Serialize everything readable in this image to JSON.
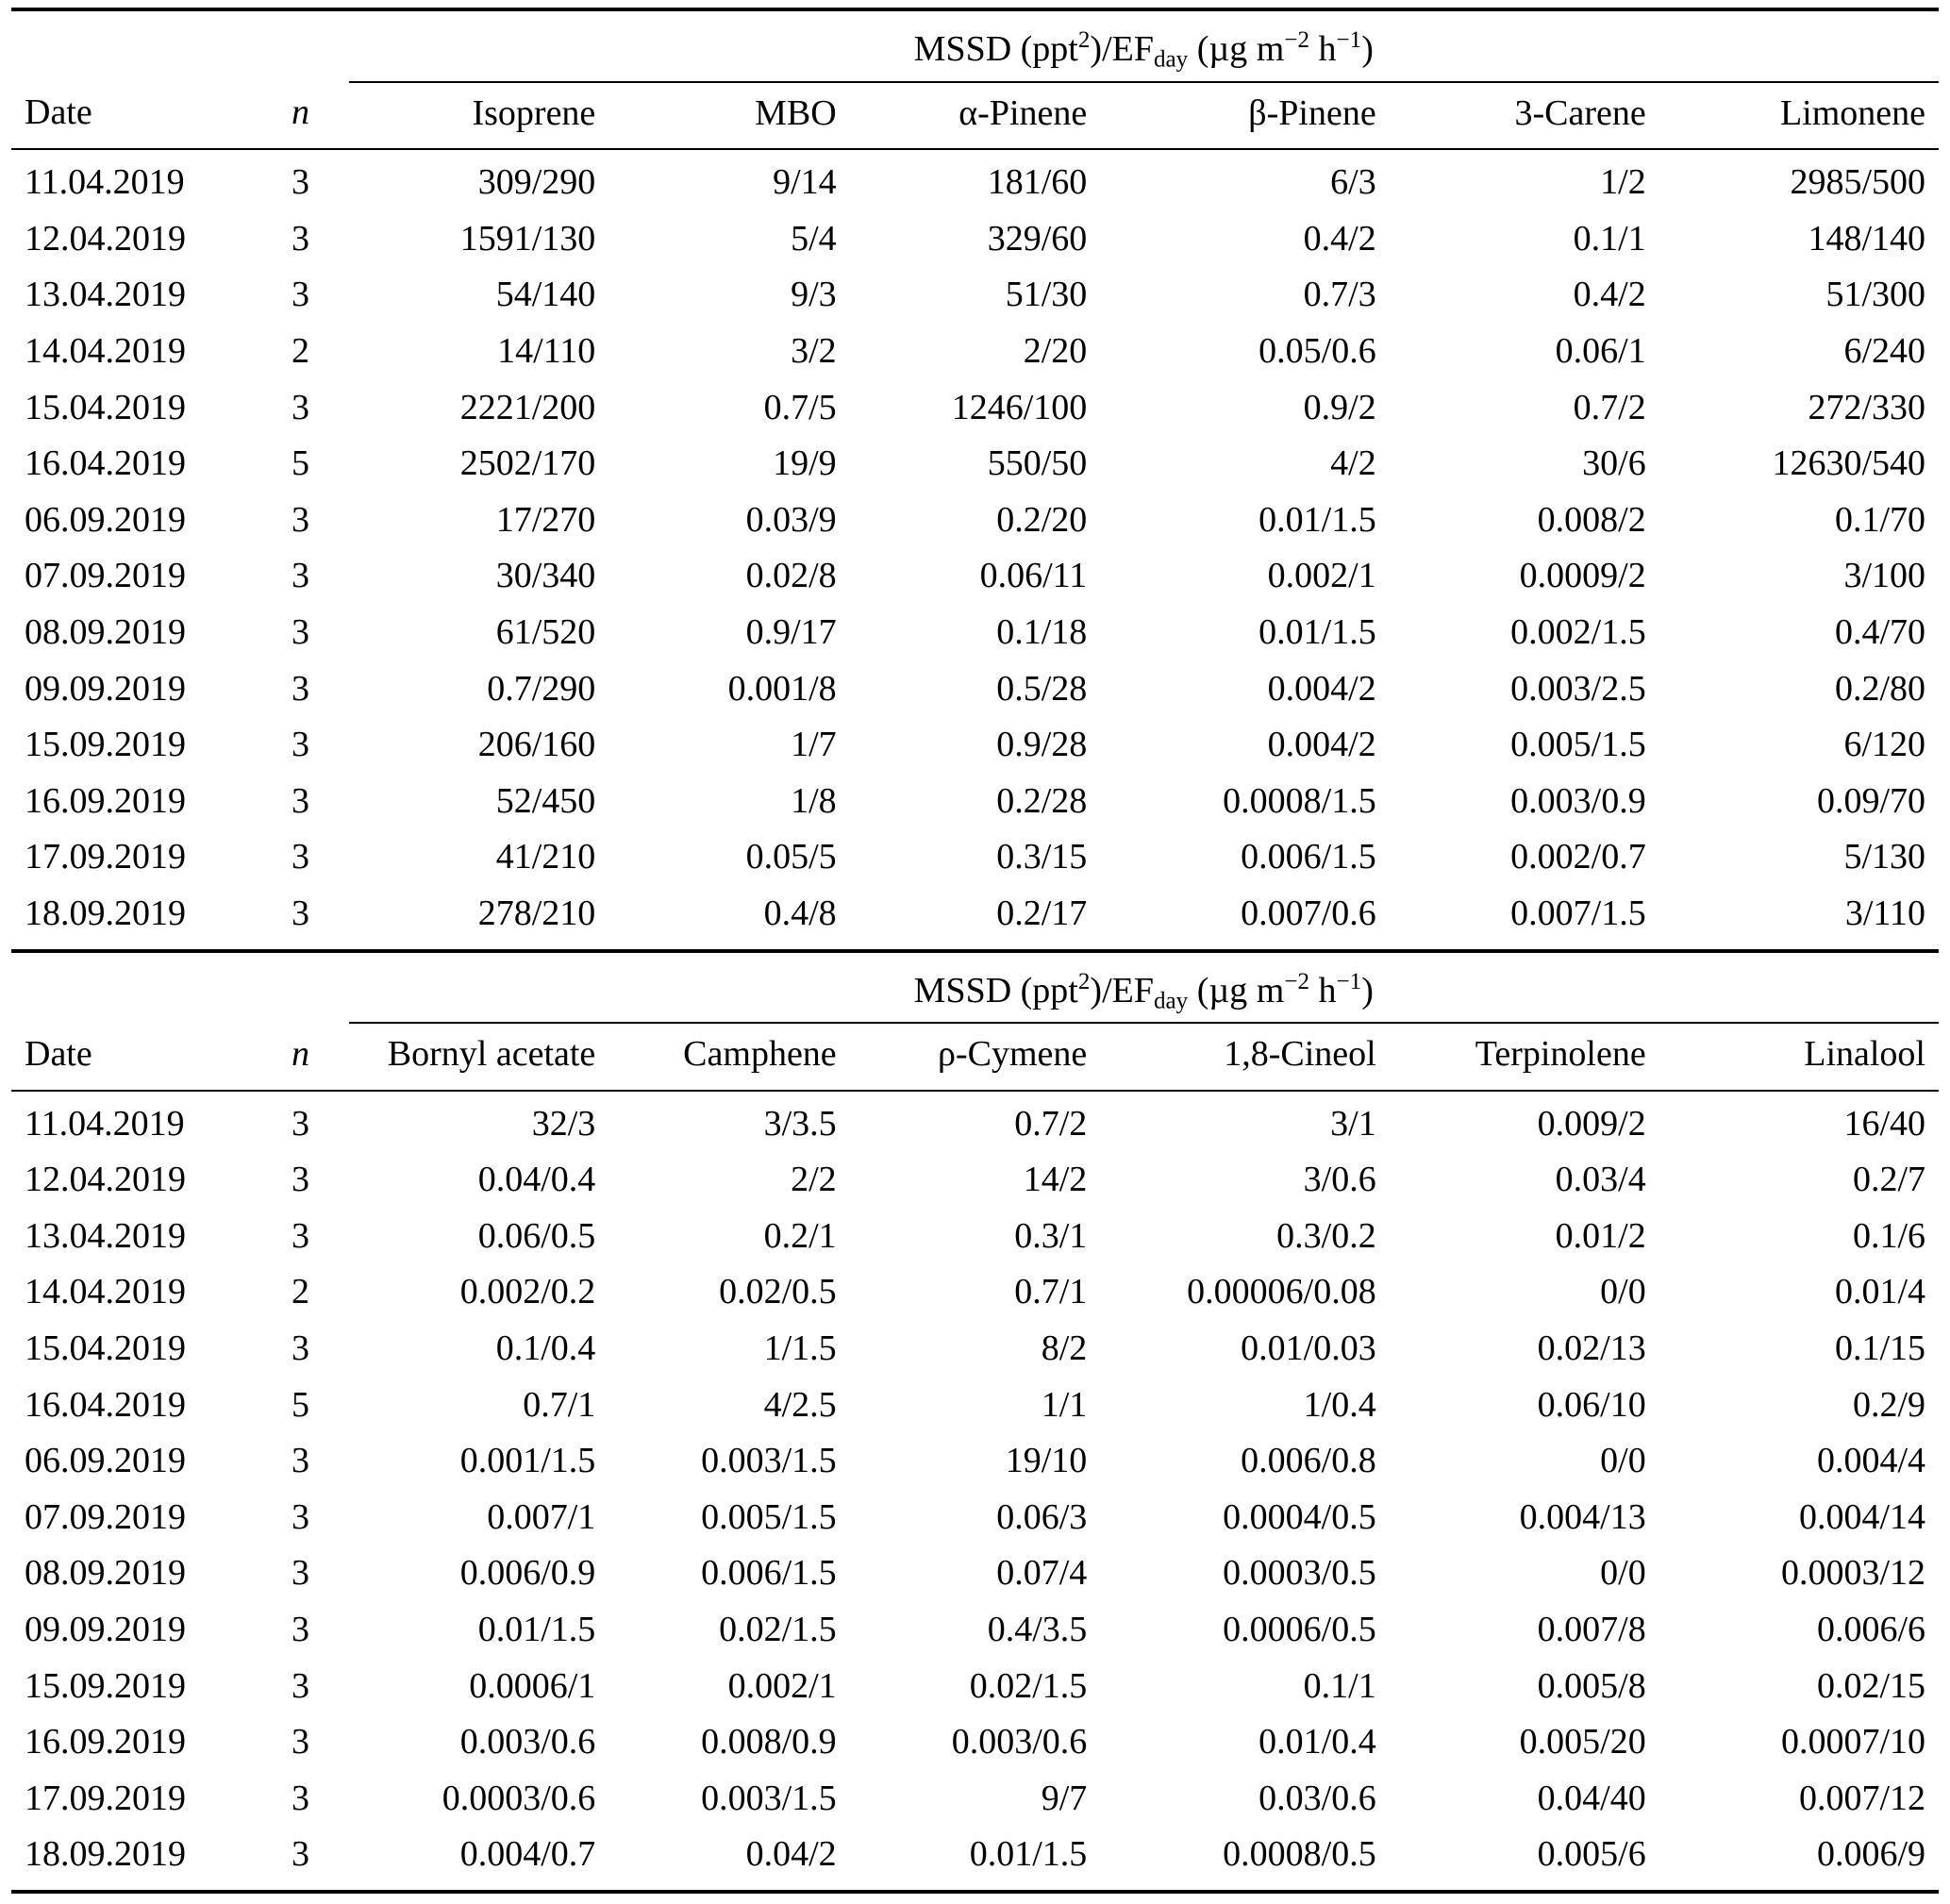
{
  "unit_header": {
    "p1": "MSSD (ppt",
    "sup1": "2",
    "p2": ")/EF",
    "sub1": "day",
    "p3": " (µg m",
    "sup2": "−2",
    "p4": " h",
    "sup3": "−1",
    "p5": ")"
  },
  "tables": [
    {
      "columns": [
        "Date",
        "n",
        "Isoprene",
        "MBO",
        "α-Pinene",
        "β-Pinene",
        "3-Carene",
        "Limonene"
      ],
      "rows": [
        [
          "11.04.2019",
          "3",
          "309/290",
          "9/14",
          "181/60",
          "6/3",
          "1/2",
          "2985/500"
        ],
        [
          "12.04.2019",
          "3",
          "1591/130",
          "5/4",
          "329/60",
          "0.4/2",
          "0.1/1",
          "148/140"
        ],
        [
          "13.04.2019",
          "3",
          "54/140",
          "9/3",
          "51/30",
          "0.7/3",
          "0.4/2",
          "51/300"
        ],
        [
          "14.04.2019",
          "2",
          "14/110",
          "3/2",
          "2/20",
          "0.05/0.6",
          "0.06/1",
          "6/240"
        ],
        [
          "15.04.2019",
          "3",
          "2221/200",
          "0.7/5",
          "1246/100",
          "0.9/2",
          "0.7/2",
          "272/330"
        ],
        [
          "16.04.2019",
          "5",
          "2502/170",
          "19/9",
          "550/50",
          "4/2",
          "30/6",
          "12630/540"
        ],
        [
          "06.09.2019",
          "3",
          "17/270",
          "0.03/9",
          "0.2/20",
          "0.01/1.5",
          "0.008/2",
          "0.1/70"
        ],
        [
          "07.09.2019",
          "3",
          "30/340",
          "0.02/8",
          "0.06/11",
          "0.002/1",
          "0.0009/2",
          "3/100"
        ],
        [
          "08.09.2019",
          "3",
          "61/520",
          "0.9/17",
          "0.1/18",
          "0.01/1.5",
          "0.002/1.5",
          "0.4/70"
        ],
        [
          "09.09.2019",
          "3",
          "0.7/290",
          "0.001/8",
          "0.5/28",
          "0.004/2",
          "0.003/2.5",
          "0.2/80"
        ],
        [
          "15.09.2019",
          "3",
          "206/160",
          "1/7",
          "0.9/28",
          "0.004/2",
          "0.005/1.5",
          "6/120"
        ],
        [
          "16.09.2019",
          "3",
          "52/450",
          "1/8",
          "0.2/28",
          "0.0008/1.5",
          "0.003/0.9",
          "0.09/70"
        ],
        [
          "17.09.2019",
          "3",
          "41/210",
          "0.05/5",
          "0.3/15",
          "0.006/1.5",
          "0.002/0.7",
          "5/130"
        ],
        [
          "18.09.2019",
          "3",
          "278/210",
          "0.4/8",
          "0.2/17",
          "0.007/0.6",
          "0.007/1.5",
          "3/110"
        ]
      ]
    },
    {
      "columns": [
        "Date",
        "n",
        "Bornyl acetate",
        "Camphene",
        "ρ-Cymene",
        "1,8-Cineol",
        "Terpinolene",
        "Linalool"
      ],
      "rows": [
        [
          "11.04.2019",
          "3",
          "32/3",
          "3/3.5",
          "0.7/2",
          "3/1",
          "0.009/2",
          "16/40"
        ],
        [
          "12.04.2019",
          "3",
          "0.04/0.4",
          "2/2",
          "14/2",
          "3/0.6",
          "0.03/4",
          "0.2/7"
        ],
        [
          "13.04.2019",
          "3",
          "0.06/0.5",
          "0.2/1",
          "0.3/1",
          "0.3/0.2",
          "0.01/2",
          "0.1/6"
        ],
        [
          "14.04.2019",
          "2",
          "0.002/0.2",
          "0.02/0.5",
          "0.7/1",
          "0.00006/0.08",
          "0/0",
          "0.01/4"
        ],
        [
          "15.04.2019",
          "3",
          "0.1/0.4",
          "1/1.5",
          "8/2",
          "0.01/0.03",
          "0.02/13",
          "0.1/15"
        ],
        [
          "16.04.2019",
          "5",
          "0.7/1",
          "4/2.5",
          "1/1",
          "1/0.4",
          "0.06/10",
          "0.2/9"
        ],
        [
          "06.09.2019",
          "3",
          "0.001/1.5",
          "0.003/1.5",
          "19/10",
          "0.006/0.8",
          "0/0",
          "0.004/4"
        ],
        [
          "07.09.2019",
          "3",
          "0.007/1",
          "0.005/1.5",
          "0.06/3",
          "0.0004/0.5",
          "0.004/13",
          "0.004/14"
        ],
        [
          "08.09.2019",
          "3",
          "0.006/0.9",
          "0.006/1.5",
          "0.07/4",
          "0.0003/0.5",
          "0/0",
          "0.0003/12"
        ],
        [
          "09.09.2019",
          "3",
          "0.01/1.5",
          "0.02/1.5",
          "0.4/3.5",
          "0.0006/0.5",
          "0.007/8",
          "0.006/6"
        ],
        [
          "15.09.2019",
          "3",
          "0.0006/1",
          "0.002/1",
          "0.02/1.5",
          "0.1/1",
          "0.005/8",
          "0.02/15"
        ],
        [
          "16.09.2019",
          "3",
          "0.003/0.6",
          "0.008/0.9",
          "0.003/0.6",
          "0.01/0.4",
          "0.005/20",
          "0.0007/10"
        ],
        [
          "17.09.2019",
          "3",
          "0.0003/0.6",
          "0.003/1.5",
          "9/7",
          "0.03/0.6",
          "0.04/40",
          "0.007/12"
        ],
        [
          "18.09.2019",
          "3",
          "0.004/0.7",
          "0.04/2",
          "0.01/1.5",
          "0.0008/0.5",
          "0.005/6",
          "0.006/9"
        ]
      ]
    }
  ]
}
